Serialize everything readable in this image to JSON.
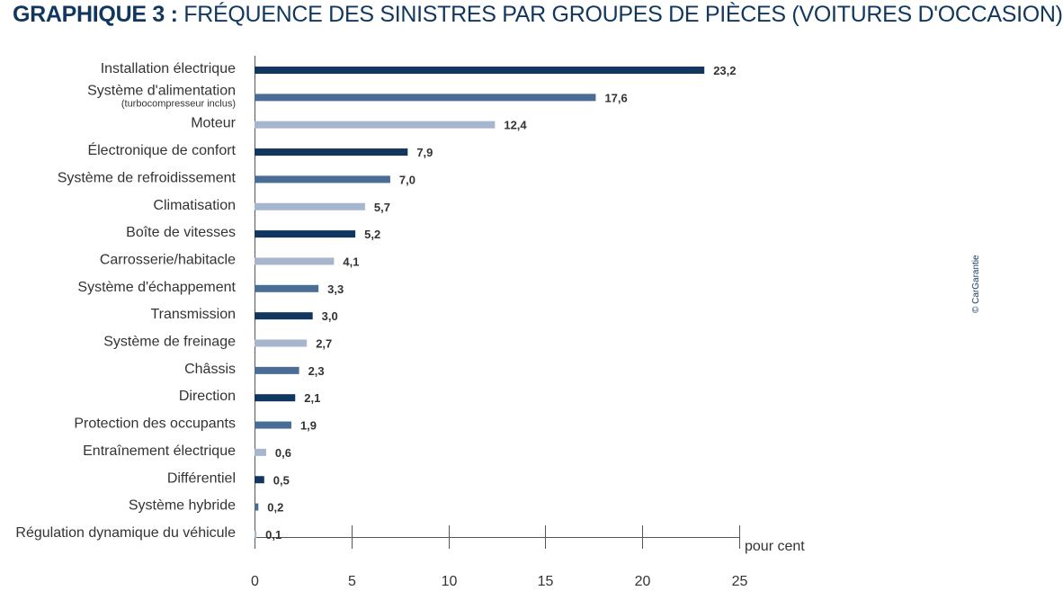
{
  "title": {
    "lead": "GRAPHIQUE 3 :",
    "text": "FRÉQUENCE DES SINISTRES PAR GROUPES DE PIÈCES (VOITURES D'OCCASION)"
  },
  "credit": "© CarGarantie",
  "colors": {
    "dark": "#12375e",
    "mid": "#4a6d96",
    "light": "#a7b6cf",
    "axis": "#555555",
    "title": "#12375e"
  },
  "chart_data": {
    "type": "bar",
    "orientation": "horizontal",
    "title": "GRAPHIQUE 3 : FRÉQUENCE DES SINISTRES PAR GROUPES DE PIÈCES (VOITURES D'OCCASION)",
    "xlabel": "pour cent",
    "ylabel": "",
    "xlim": [
      0,
      25
    ],
    "ticks": [
      "0",
      "5",
      "10",
      "15",
      "20",
      "25"
    ],
    "tick_values": [
      0,
      5,
      10,
      15,
      20,
      25
    ],
    "categories": [
      "Installation électrique",
      "Système d'alimentation",
      "Moteur",
      "Électronique de confort",
      "Système de refroidissement",
      "Climatisation",
      "Boîte de vitesses",
      "Carrosserie/habitacle",
      "Système d'échappement",
      "Transmission",
      "Système de freinage",
      "Châssis",
      "Direction",
      "Protection des occupants",
      "Entraînement électrique",
      "Différentiel",
      "Système hybride",
      "Régulation dynamique du véhicule"
    ],
    "sublabels": [
      "",
      "(turbocompresseur inclus)",
      "",
      "",
      "",
      "",
      "",
      "",
      "",
      "",
      "",
      "",
      "",
      "",
      "",
      "",
      "",
      ""
    ],
    "values": [
      23.2,
      17.6,
      12.4,
      7.9,
      7.0,
      5.7,
      5.2,
      4.1,
      3.3,
      3.0,
      2.7,
      2.3,
      2.1,
      1.9,
      0.6,
      0.5,
      0.2,
      0.1
    ],
    "value_labels": [
      "23,2",
      "17,6",
      "12,4",
      "7,9",
      "7,0",
      "5,7",
      "5,2",
      "4,1",
      "3,3",
      "3,0",
      "2,7",
      "2,3",
      "2,1",
      "1,9",
      "0,6",
      "0,5",
      "0,2",
      "0,1"
    ],
    "bar_colors": [
      "dark",
      "mid",
      "light",
      "dark",
      "mid",
      "light",
      "dark",
      "light",
      "mid",
      "dark",
      "light",
      "mid",
      "dark",
      "mid",
      "light",
      "dark",
      "mid",
      "light"
    ],
    "grid": false
  }
}
